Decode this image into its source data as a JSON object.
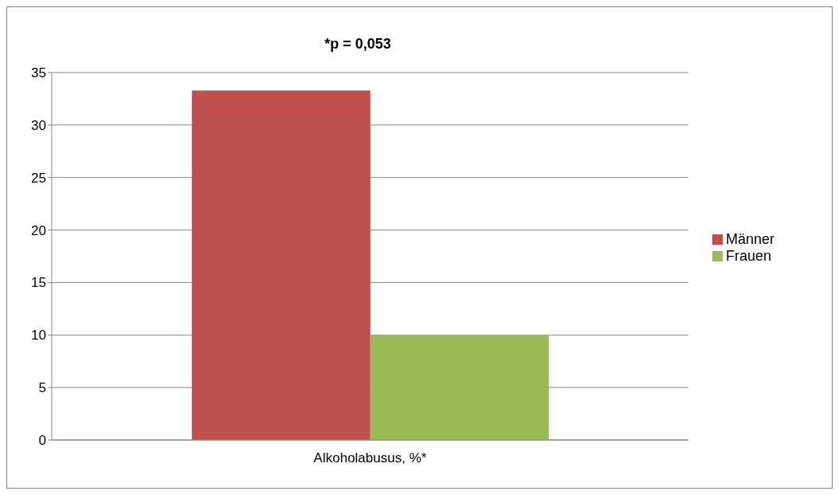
{
  "chart_data": {
    "type": "bar",
    "title": "*p = 0,053",
    "categories": [
      "Alkoholabusus, %*"
    ],
    "series": [
      {
        "name": "Männer",
        "color": "#c0504d",
        "values": [
          33.3
        ]
      },
      {
        "name": "Frauen",
        "color": "#9bbb59",
        "values": [
          10
        ]
      }
    ],
    "ylim": [
      0,
      35
    ],
    "yticks": [
      0,
      5,
      10,
      15,
      20,
      25,
      30,
      35
    ],
    "grid": "y",
    "legend": "right"
  }
}
